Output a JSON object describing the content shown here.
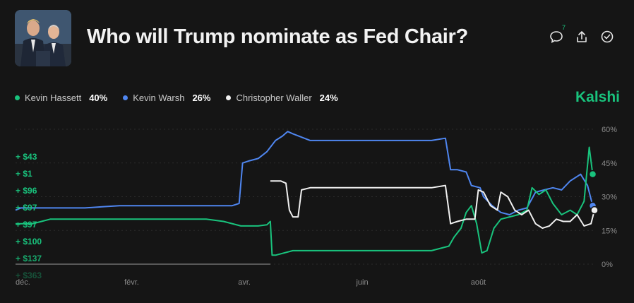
{
  "header": {
    "title": "Who will Trump nominate as Fed Chair?",
    "comment_count": "7"
  },
  "brand": "Kalshi",
  "legend": [
    {
      "name": "Kevin Hassett",
      "value": "40%",
      "color": "#19c37d"
    },
    {
      "name": "Kevin Warsh",
      "value": "26%",
      "color": "#4f86f0"
    },
    {
      "name": "Christopher Waller",
      "value": "24%",
      "color": "#f0f0f0"
    }
  ],
  "trades": [
    "+ $43",
    "+ $1",
    "+ $96",
    "+ $97",
    "+ $97",
    "+ $100",
    "+ $137",
    "+ $363"
  ],
  "chart_data": {
    "type": "line",
    "x_ticks": [
      "déc.",
      "févr.",
      "avr.",
      "juin",
      "août"
    ],
    "y_ticks": [
      "60%",
      "45%",
      "30%",
      "15%",
      "0%"
    ],
    "ylim": [
      0,
      60
    ],
    "series": [
      {
        "name": "Kevin Warsh",
        "color": "#4f86f0",
        "values": [
          [
            0,
            24
          ],
          [
            0.3,
            25
          ],
          [
            1,
            25
          ],
          [
            2,
            25
          ],
          [
            3,
            25
          ],
          [
            4,
            25
          ],
          [
            5,
            25.5
          ],
          [
            6,
            26
          ],
          [
            7,
            26
          ],
          [
            8,
            26
          ],
          [
            9,
            26
          ],
          [
            10,
            26
          ],
          [
            11,
            26
          ],
          [
            12,
            26
          ],
          [
            12.5,
            26
          ],
          [
            12.9,
            27
          ],
          [
            13.1,
            45
          ],
          [
            13.5,
            46
          ],
          [
            14,
            47
          ],
          [
            14.5,
            50
          ],
          [
            15,
            55
          ],
          [
            15.4,
            57
          ],
          [
            15.7,
            59
          ],
          [
            16,
            58
          ],
          [
            17,
            55
          ],
          [
            18,
            55
          ],
          [
            19,
            55
          ],
          [
            20,
            55
          ],
          [
            21,
            55
          ],
          [
            22,
            55
          ],
          [
            23,
            55
          ],
          [
            24,
            55
          ],
          [
            24.8,
            56
          ],
          [
            25.1,
            42
          ],
          [
            25.5,
            42
          ],
          [
            26,
            41
          ],
          [
            26.3,
            35
          ],
          [
            26.8,
            34
          ],
          [
            27,
            30
          ],
          [
            27.5,
            26
          ],
          [
            28,
            23
          ],
          [
            28.5,
            22
          ],
          [
            29,
            24
          ],
          [
            29.5,
            25
          ],
          [
            30,
            32
          ],
          [
            30.5,
            33
          ],
          [
            31,
            34
          ],
          [
            31.5,
            33
          ],
          [
            32,
            37
          ],
          [
            32.6,
            40
          ],
          [
            33,
            35
          ],
          [
            33.3,
            26
          ]
        ]
      },
      {
        "name": "Kevin Hassett",
        "color": "#19c37d",
        "values": [
          [
            0,
            18
          ],
          [
            1,
            18
          ],
          [
            1.5,
            19
          ],
          [
            2,
            20
          ],
          [
            3,
            20
          ],
          [
            4,
            20
          ],
          [
            5,
            20
          ],
          [
            6,
            20
          ],
          [
            7,
            20
          ],
          [
            8,
            20
          ],
          [
            9,
            20
          ],
          [
            10,
            20
          ],
          [
            11,
            20
          ],
          [
            12,
            19
          ],
          [
            13,
            17
          ],
          [
            14,
            17
          ],
          [
            14.5,
            17.5
          ],
          [
            14.7,
            19
          ],
          [
            14.8,
            4
          ],
          [
            15,
            4
          ],
          [
            16,
            6
          ],
          [
            17,
            6
          ],
          [
            18,
            6
          ],
          [
            19,
            6
          ],
          [
            20,
            6
          ],
          [
            21,
            6
          ],
          [
            22,
            6
          ],
          [
            23,
            6
          ],
          [
            24,
            6
          ],
          [
            25,
            8
          ],
          [
            25.3,
            12
          ],
          [
            25.7,
            16
          ],
          [
            26,
            23
          ],
          [
            26.3,
            26
          ],
          [
            26.6,
            18
          ],
          [
            26.9,
            5
          ],
          [
            27.2,
            6
          ],
          [
            27.6,
            16
          ],
          [
            28,
            20
          ],
          [
            28.5,
            21
          ],
          [
            29,
            22
          ],
          [
            29.5,
            24
          ],
          [
            29.8,
            34
          ],
          [
            30.2,
            31
          ],
          [
            30.6,
            33
          ],
          [
            31,
            27
          ],
          [
            31.5,
            22
          ],
          [
            32,
            24
          ],
          [
            32.4,
            22
          ],
          [
            32.8,
            28
          ],
          [
            33.1,
            52
          ],
          [
            33.3,
            40
          ]
        ]
      },
      {
        "name": "Christopher Waller",
        "color": "#f0f0f0",
        "values": [
          [
            14.7,
            37
          ],
          [
            15,
            37
          ],
          [
            15.3,
            37
          ],
          [
            15.6,
            36
          ],
          [
            15.8,
            24
          ],
          [
            16,
            21
          ],
          [
            16.3,
            21
          ],
          [
            16.5,
            33
          ],
          [
            17,
            34
          ],
          [
            18,
            34
          ],
          [
            19,
            34
          ],
          [
            20,
            34
          ],
          [
            21,
            34
          ],
          [
            22,
            34
          ],
          [
            23,
            34
          ],
          [
            24,
            34
          ],
          [
            24.8,
            35
          ],
          [
            25.1,
            18
          ],
          [
            25.5,
            19
          ],
          [
            26,
            20
          ],
          [
            26.5,
            20
          ],
          [
            26.7,
            33
          ],
          [
            27,
            32
          ],
          [
            27.4,
            26
          ],
          [
            27.8,
            24
          ],
          [
            28,
            32
          ],
          [
            28.4,
            30
          ],
          [
            28.8,
            24
          ],
          [
            29.2,
            22
          ],
          [
            29.6,
            24
          ],
          [
            30,
            18
          ],
          [
            30.4,
            16
          ],
          [
            30.8,
            17
          ],
          [
            31.2,
            20
          ],
          [
            31.6,
            19
          ],
          [
            32,
            19
          ],
          [
            32.4,
            22
          ],
          [
            32.8,
            17
          ],
          [
            33.2,
            18
          ],
          [
            33.4,
            24
          ]
        ]
      },
      {
        "name": "",
        "color": "#9a9a9a",
        "values": [
          [
            0,
            0
          ],
          [
            14.7,
            0
          ]
        ]
      }
    ]
  }
}
